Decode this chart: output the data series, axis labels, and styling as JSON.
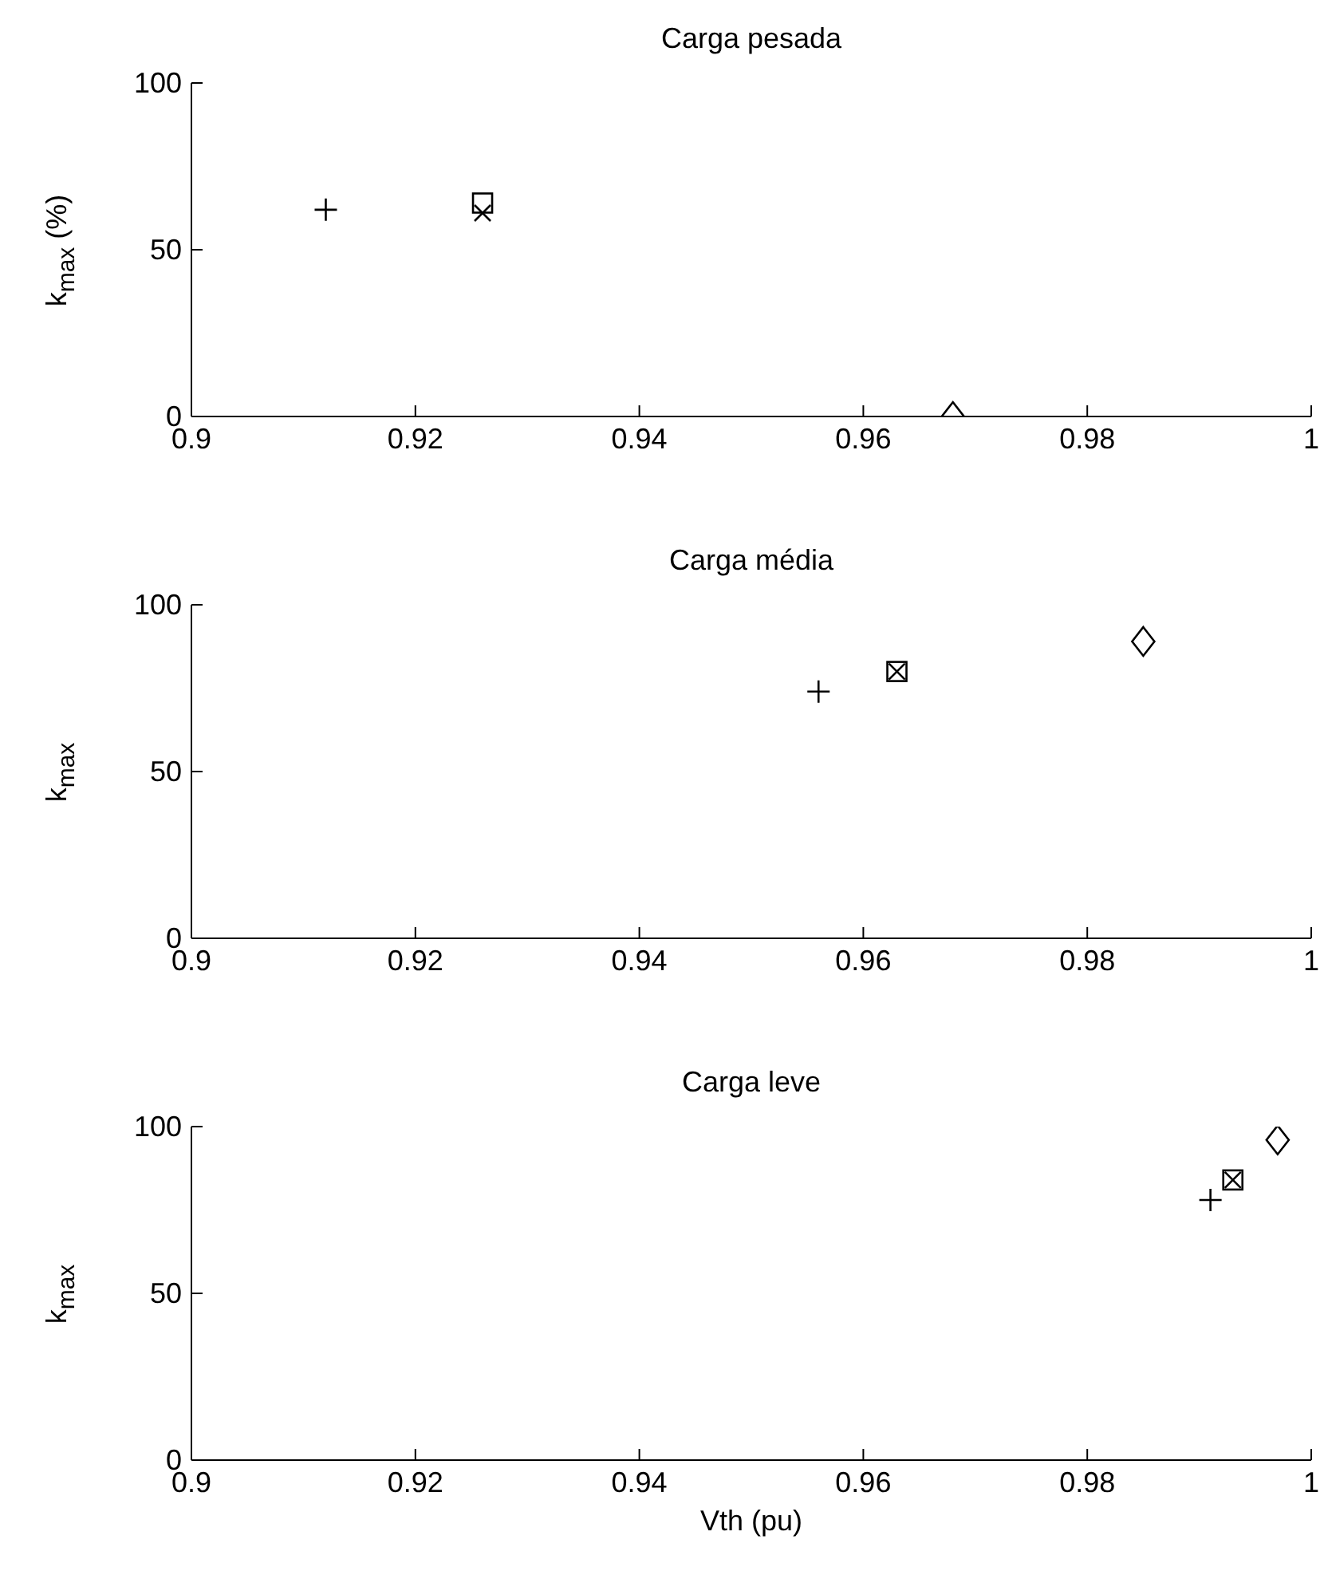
{
  "chart_data": [
    {
      "type": "scatter",
      "title": "Carga pesada",
      "ylabel": "k$_{max}$ (%)",
      "xlim": [
        0.9,
        1
      ],
      "xticks": [
        0.9,
        0.92,
        0.94,
        0.96,
        0.98,
        1
      ],
      "ylim": [
        0,
        100
      ],
      "yticks": [
        0,
        50,
        100
      ],
      "grid": false,
      "legend": false,
      "series": [
        {
          "color": "#000000",
          "marker": "plus",
          "x": [
            0.912
          ],
          "values": [
            62
          ]
        },
        {
          "color": "#000000",
          "marker": "square",
          "x": [
            0.926
          ],
          "values": [
            64
          ]
        },
        {
          "color": "#000000",
          "marker": "cross",
          "x": [
            0.926
          ],
          "values": [
            61
          ]
        },
        {
          "color": "#000000",
          "marker": "diamond",
          "x": [
            0.968
          ],
          "values": [
            0
          ]
        }
      ]
    },
    {
      "type": "scatter",
      "title": "Carga média",
      "ylabel": "k$_{max}$",
      "xlim": [
        0.9,
        1
      ],
      "xticks": [
        0.9,
        0.92,
        0.94,
        0.96,
        0.98,
        1
      ],
      "ylim": [
        0,
        100
      ],
      "yticks": [
        0,
        50,
        100
      ],
      "grid": false,
      "legend": false,
      "series": [
        {
          "color": "#000000",
          "marker": "plus",
          "x": [
            0.956
          ],
          "values": [
            74
          ]
        },
        {
          "color": "#000000",
          "marker": "square",
          "x": [
            0.963
          ],
          "values": [
            80
          ]
        },
        {
          "color": "#000000",
          "marker": "cross",
          "x": [
            0.963
          ],
          "values": [
            80
          ]
        },
        {
          "color": "#000000",
          "marker": "diamond",
          "x": [
            0.985
          ],
          "values": [
            89
          ]
        }
      ]
    },
    {
      "type": "scatter",
      "title": "Carga leve",
      "ylabel": "k$_{max}$",
      "xlabel": "Vth (pu)",
      "xlim": [
        0.9,
        1
      ],
      "xticks": [
        0.9,
        0.92,
        0.94,
        0.96,
        0.98,
        1
      ],
      "ylim": [
        0,
        100
      ],
      "yticks": [
        0,
        50,
        100
      ],
      "grid": false,
      "legend": false,
      "series": [
        {
          "color": "#000000",
          "marker": "plus",
          "x": [
            0.991
          ],
          "values": [
            78
          ]
        },
        {
          "color": "#000000",
          "marker": "square",
          "x": [
            0.993
          ],
          "values": [
            84
          ]
        },
        {
          "color": "#000000",
          "marker": "cross",
          "x": [
            0.993
          ],
          "values": [
            84
          ]
        },
        {
          "color": "#000000",
          "marker": "diamond",
          "x": [
            0.997
          ],
          "values": [
            96
          ]
        }
      ]
    }
  ]
}
